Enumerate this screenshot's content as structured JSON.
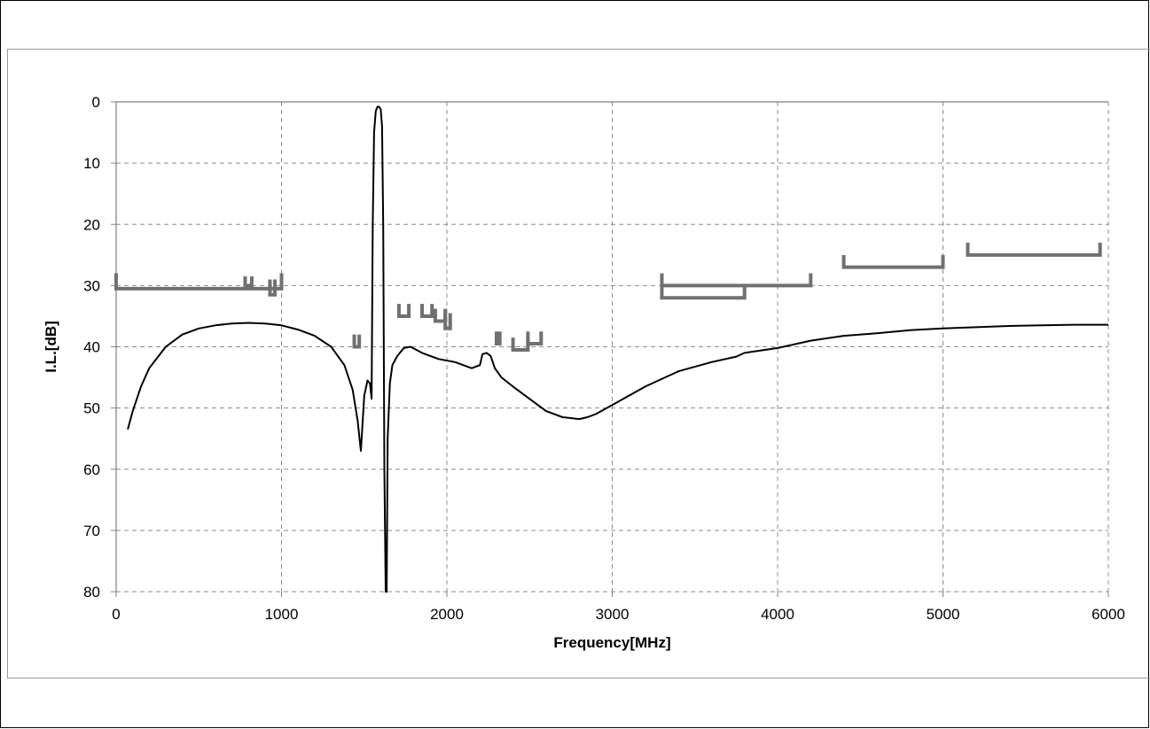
{
  "chart_data": {
    "type": "line",
    "title": "",
    "xlabel": "Frequency[MHz]",
    "ylabel": "I.L.[dB]",
    "xlim": [
      0,
      6000
    ],
    "ylim": [
      0,
      80
    ],
    "y_inverted": true,
    "x_ticks": [
      0,
      1000,
      2000,
      3000,
      4000,
      5000,
      6000
    ],
    "y_ticks": [
      0,
      10,
      20,
      30,
      40,
      50,
      60,
      70,
      80
    ],
    "grid": true,
    "legend": "none",
    "colors": {
      "line": "#000000",
      "spec": "#707070",
      "grid": "#8c8c8c"
    },
    "series": [
      {
        "x": [
          70,
          100,
          150,
          200,
          300,
          400,
          500,
          600,
          700,
          800,
          900,
          1000,
          1100,
          1200,
          1300,
          1380,
          1430,
          1460,
          1480,
          1500,
          1520,
          1535,
          1545,
          1552,
          1560,
          1570,
          1580,
          1590,
          1600,
          1608,
          1615,
          1622,
          1630,
          1636,
          1642,
          1655,
          1670,
          1700,
          1740,
          1780,
          1850,
          1950,
          2050,
          2150,
          2200,
          2215,
          2240,
          2265,
          2290,
          2330,
          2400,
          2500,
          2600,
          2700,
          2800,
          2850,
          2900,
          3000,
          3200,
          3400,
          3600,
          3750,
          3800,
          3850,
          4000,
          4200,
          4400,
          4600,
          4800,
          5000,
          5200,
          5400,
          5600,
          5800,
          6000
        ],
        "y": [
          53.5,
          50.5,
          46.5,
          43.5,
          40,
          38,
          37,
          36.5,
          36.2,
          36.1,
          36.2,
          36.5,
          37.2,
          38.2,
          40,
          43,
          47,
          52,
          57,
          48,
          45.5,
          46,
          48.5,
          20,
          5,
          1.5,
          0.8,
          0.8,
          1.2,
          4,
          20,
          60,
          80,
          80,
          55,
          46,
          43,
          41.5,
          40.2,
          40,
          41,
          42,
          42.5,
          43.5,
          43,
          41.2,
          41,
          41.5,
          43.5,
          45,
          46.5,
          48.5,
          50.5,
          51.5,
          51.8,
          51.5,
          51,
          49.5,
          46.5,
          44,
          42.5,
          41.6,
          41,
          40.8,
          40.2,
          39,
          38.2,
          37.8,
          37.3,
          37,
          36.8,
          36.6,
          36.5,
          36.4,
          36.4
        ]
      }
    ],
    "spec_brackets": [
      {
        "x1": 0,
        "x2": 1000,
        "y": 30.5,
        "depth": 2.5,
        "dir": "up"
      },
      {
        "x1": 930,
        "x2": 960,
        "y": 31.5,
        "depth": 2.5,
        "dir": "up"
      },
      {
        "x1": 780,
        "x2": 820,
        "y": 30,
        "depth": 1.5,
        "dir": "up"
      },
      {
        "x1": 1440,
        "x2": 1470,
        "y": 40,
        "depth": 2,
        "dir": "up"
      },
      {
        "x1": 1710,
        "x2": 1770,
        "y": 35,
        "depth": 2,
        "dir": "up"
      },
      {
        "x1": 1850,
        "x2": 1910,
        "y": 35,
        "depth": 2,
        "dir": "up"
      },
      {
        "x1": 1930,
        "x2": 1990,
        "y": 35.8,
        "depth": 2,
        "dir": "up"
      },
      {
        "x1": 1990,
        "x2": 2020,
        "y": 37,
        "depth": 2.5,
        "dir": "up"
      },
      {
        "x1": 2300,
        "x2": 2320,
        "y": 39.5,
        "depth": 2,
        "dir": "up"
      },
      {
        "x1": 2400,
        "x2": 2490,
        "y": 40.5,
        "depth": 2,
        "dir": "up"
      },
      {
        "x1": 2490,
        "x2": 2570,
        "y": 39.5,
        "depth": 2,
        "dir": "up"
      },
      {
        "x1": 3300,
        "x2": 4200,
        "y": 30,
        "depth": 2,
        "dir": "up"
      },
      {
        "x1": 3300,
        "x2": 3800,
        "y": 32,
        "depth": 2,
        "dir": "up"
      },
      {
        "x1": 4400,
        "x2": 5000,
        "y": 27,
        "depth": 2,
        "dir": "up"
      },
      {
        "x1": 5150,
        "x2": 5950,
        "y": 25,
        "depth": 2,
        "dir": "up"
      }
    ]
  }
}
